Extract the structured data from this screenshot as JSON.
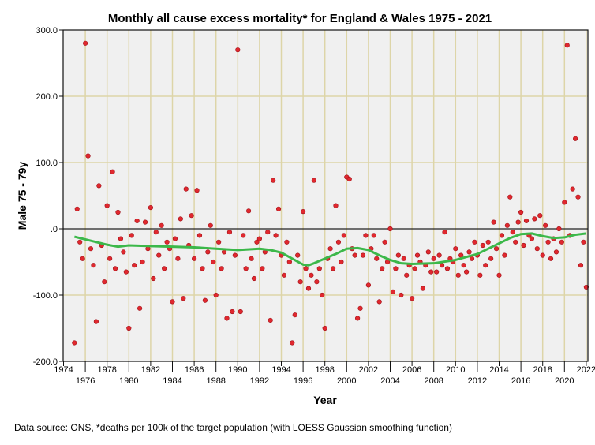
{
  "chart_data": {
    "type": "scatter",
    "title": "Monthly all cause excess mortality* for England & Wales 1975 - 2021",
    "xlabel": "Year",
    "ylabel": "Male 75 - 79y",
    "footnote": "Data source: ONS, *deaths per 100k of the target population (with LOESS Gaussian smoothing function)",
    "xlim": [
      1974,
      2022.2
    ],
    "ylim": [
      -200,
      300
    ],
    "x_ticks": [
      "1974",
      "1976",
      "1978",
      "1980",
      "1982",
      "1984",
      "1986",
      "1988",
      "1990",
      "1992",
      "1994",
      "1996",
      "1998",
      "2000",
      "2002",
      "2004",
      "2006",
      "2008",
      "2010",
      "2012",
      "2014",
      "2016",
      "2018",
      "2020",
      "2022"
    ],
    "y_ticks": [
      "300.0",
      "200.0",
      "100.0",
      ".0",
      "-100.0",
      "-200.0"
    ],
    "grid": true,
    "colors": {
      "points": "#e0282e",
      "loess": "#3cb84a",
      "background": "#f0f0f0",
      "grid": "#ddd5a8"
    },
    "scatter": {
      "x_start": 1975,
      "x_step": 0.25,
      "y": [
        -172,
        30,
        -20,
        -45,
        280,
        110,
        -30,
        -55,
        -140,
        65,
        -25,
        -80,
        35,
        -45,
        86,
        -60,
        25,
        -15,
        -35,
        -65,
        -150,
        -10,
        -55,
        12,
        -120,
        -50,
        10,
        -30,
        32,
        -75,
        -5,
        -40,
        5,
        -60,
        -20,
        -30,
        -110,
        -15,
        -45,
        15,
        -105,
        60,
        -25,
        20,
        -45,
        58,
        -10,
        -60,
        -108,
        -35,
        5,
        -50,
        -100,
        -20,
        -60,
        -35,
        -135,
        -5,
        -125,
        -40,
        270,
        -125,
        -10,
        -60,
        27,
        -45,
        -75,
        -20,
        -15,
        -60,
        -35,
        -5,
        -138,
        73,
        -10,
        30,
        -40,
        -70,
        -20,
        -50,
        -172,
        -130,
        -40,
        -80,
        26,
        -60,
        -90,
        -70,
        73,
        -80,
        -60,
        -100,
        -150,
        -45,
        -30,
        -60,
        35,
        -20,
        -50,
        -10,
        78,
        75,
        -30,
        -40,
        -135,
        -120,
        -40,
        -10,
        -85,
        -30,
        -10,
        -45,
        -110,
        -60,
        -20,
        -50,
        0,
        -95,
        -60,
        -40,
        -100,
        -45,
        -70,
        -55,
        -105,
        -60,
        -40,
        -50,
        -90,
        -55,
        -35,
        -65,
        -45,
        -65,
        -40,
        -55,
        -5,
        -60,
        -45,
        -50,
        -30,
        -70,
        -40,
        -55,
        -65,
        -35,
        -45,
        -20,
        -40,
        -70,
        -25,
        -55,
        -20,
        -45,
        10,
        -30,
        -70,
        -10,
        -40,
        5,
        48,
        -5,
        -20,
        10,
        25,
        -25,
        12,
        -10,
        -15,
        15,
        -30,
        20,
        -40,
        5,
        -20,
        -45,
        -15,
        -35,
        0,
        -20,
        40,
        277,
        -10,
        60,
        136,
        48,
        -55,
        -20,
        -88
      ]
    },
    "loess": {
      "x": [
        1975,
        1976,
        1977,
        1978,
        1979,
        1980,
        1982,
        1984,
        1986,
        1988,
        1990,
        1992,
        1993,
        1994,
        1995,
        1996,
        1996.5,
        1997,
        1998,
        1999,
        2000,
        2001,
        2002,
        2003,
        2004,
        2005,
        2006,
        2008,
        2010,
        2012,
        2013,
        2014,
        2015,
        2016,
        2017,
        2018,
        2019,
        2020,
        2021,
        2022
      ],
      "y": [
        -12,
        -16,
        -20,
        -24,
        -27,
        -25,
        -26,
        -27,
        -28,
        -30,
        -32,
        -30,
        -32,
        -36,
        -45,
        -54,
        -55,
        -52,
        -45,
        -38,
        -30,
        -29,
        -32,
        -40,
        -47,
        -52,
        -53,
        -52,
        -47,
        -38,
        -30,
        -22,
        -14,
        -8,
        -7,
        -11,
        -14,
        -13,
        -9,
        -7
      ]
    }
  }
}
